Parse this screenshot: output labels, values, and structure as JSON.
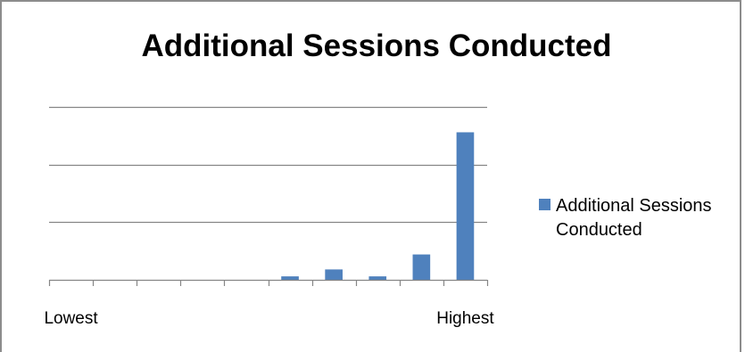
{
  "chart_data": {
    "type": "bar",
    "title": "Additional Sessions Conducted",
    "xlabel": "",
    "ylabel": "",
    "categories": [
      "Lowest",
      "",
      "",
      "",
      "",
      "",
      "",
      "",
      "",
      "Highest"
    ],
    "series": [
      {
        "name": "Additional Sessions Conducted",
        "values": [
          0,
          0,
          0,
          0,
          0,
          0.6,
          1.8,
          0.6,
          4.4,
          25.6
        ]
      }
    ],
    "ylim": [
      0,
      30
    ],
    "grid": true,
    "legend": "right",
    "color": "#4f81bd"
  }
}
